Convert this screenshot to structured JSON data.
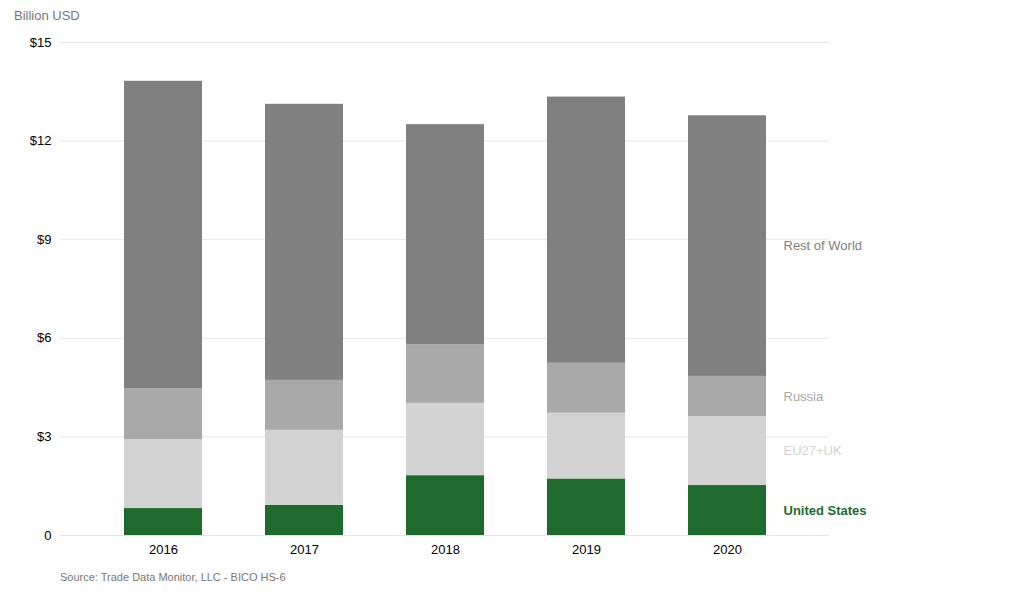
{
  "chart_data": {
    "type": "bar",
    "stacked": true,
    "ylabel": "Billion USD",
    "caption": "Source: Trade Data Monitor, LLC - BICO HS-6",
    "categories": [
      "2016",
      "2017",
      "2018",
      "2019",
      "2020"
    ],
    "series": [
      {
        "name": "United States",
        "color": "#1f6b2e",
        "values": [
          0.82,
          0.92,
          1.82,
          1.72,
          1.52
        ]
      },
      {
        "name": "EU27+UK",
        "color": "#d3d3d3",
        "values": [
          2.1,
          2.28,
          2.2,
          2.0,
          2.1
        ]
      },
      {
        "name": "Russia",
        "color": "#a9a9a9",
        "values": [
          1.55,
          1.52,
          1.78,
          1.52,
          1.22
        ]
      },
      {
        "name": "Rest of World",
        "color": "#808080",
        "values": [
          9.35,
          8.4,
          6.7,
          8.1,
          7.93
        ]
      }
    ],
    "ylim": [
      0,
      15
    ],
    "yticks": [
      0,
      {
        "value": 3,
        "label": "$3"
      },
      {
        "value": 6,
        "label": "$6"
      },
      {
        "value": 9,
        "label": "$9"
      },
      {
        "value": 12,
        "label": "$12"
      },
      {
        "value": 15,
        "label": "$15"
      }
    ],
    "grid": true,
    "legend": "right"
  }
}
